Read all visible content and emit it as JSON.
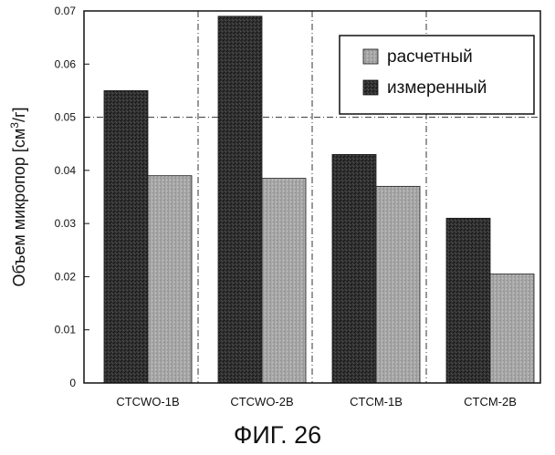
{
  "chart_data": {
    "type": "bar",
    "ylabel": "Объем микропор [см³/г]",
    "ylabel_parts": {
      "main": "Объем микропор [см",
      "sup": "3",
      "tail": "/г]"
    },
    "categories": [
      "CTCWO-1B",
      "CTCWO-2B",
      "CTCM-1B",
      "CTCM-2B"
    ],
    "series": [
      {
        "name": "измеренный",
        "values": [
          0.055,
          0.069,
          0.043,
          0.031
        ],
        "color": "#2e2e2e"
      },
      {
        "name": "расчетный",
        "values": [
          0.039,
          0.0385,
          0.037,
          0.0205
        ],
        "color": "#a9a9a9"
      }
    ],
    "legend_order": [
      1,
      0
    ],
    "ylim": [
      0,
      0.07
    ],
    "yticks": [
      "0",
      "0.01",
      "0.02",
      "0.03",
      "0.04",
      "0.05",
      "0.06",
      "0.07"
    ],
    "grid": "dash-dot reference lines at 0.05 and between groups",
    "legend_position": "top-right"
  },
  "caption": "ФИГ. 26"
}
